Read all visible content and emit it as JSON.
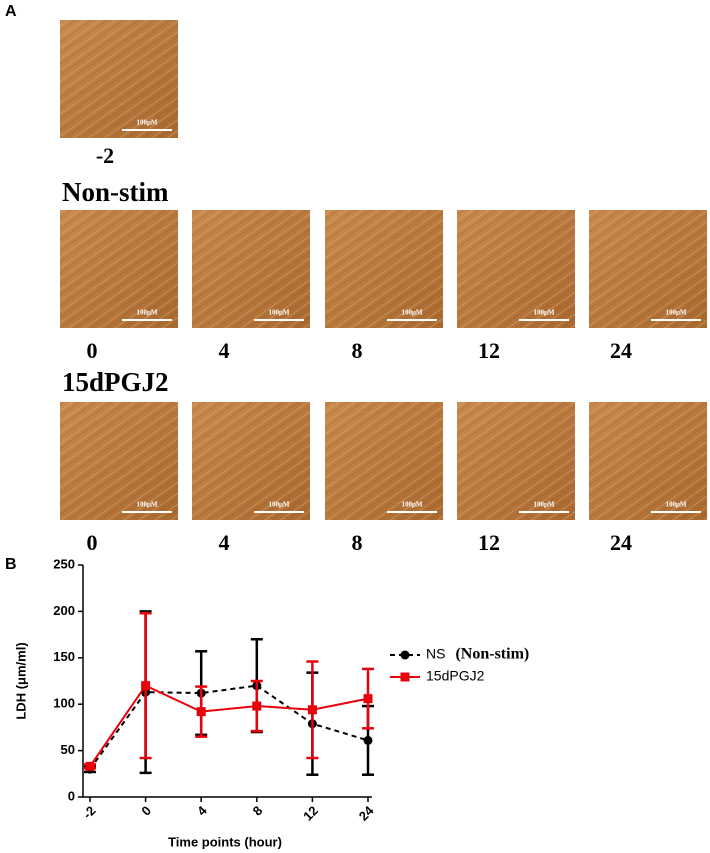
{
  "panel_a": {
    "label": "A",
    "scale_bar": "100μM",
    "pre": {
      "time": "-2"
    },
    "groups": [
      {
        "name": "Non-stim",
        "times": [
          "0",
          "4",
          "8",
          "12",
          "24"
        ]
      },
      {
        "name": "15dPGJ2",
        "times": [
          "0",
          "4",
          "8",
          "12",
          "24"
        ]
      }
    ]
  },
  "panel_b": {
    "label": "B"
  },
  "chart_data": {
    "type": "line",
    "ylabel": "LDH (μm/ml)",
    "xlabel": "Time points (hour)",
    "categories": [
      "-2",
      "0",
      "4",
      "8",
      "12",
      "24"
    ],
    "ylim": [
      0,
      250
    ],
    "yticks": [
      0,
      50,
      100,
      150,
      200,
      250
    ],
    "series": [
      {
        "name": "NS",
        "note": "(Non-stim)",
        "color": "#000000",
        "linestyle": "dashed",
        "marker": "circle",
        "values": [
          30,
          113,
          112,
          120,
          79,
          61
        ],
        "errors": [
          3,
          87,
          45,
          50,
          55,
          37
        ]
      },
      {
        "name": "15dPGJ2",
        "color": "#e8000b",
        "linestyle": "solid",
        "marker": "square",
        "values": [
          33,
          120,
          92,
          98,
          94,
          106
        ],
        "errors": [
          2,
          78,
          27,
          27,
          52,
          32
        ]
      }
    ]
  }
}
